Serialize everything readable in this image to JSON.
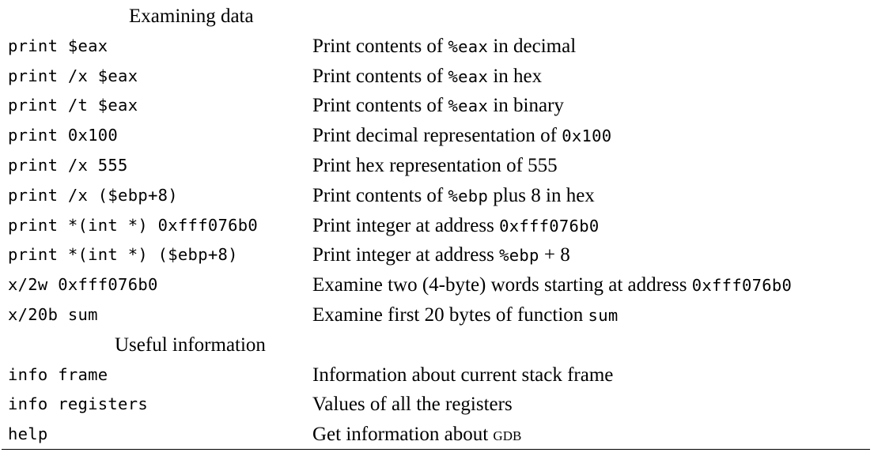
{
  "sections": [
    {
      "heading": "Examining data",
      "rows": [
        {
          "command": "print $eax",
          "desc": [
            {
              "t": "Print contents of "
            },
            {
              "t": "%eax",
              "mono": true
            },
            {
              "t": " in decimal"
            }
          ]
        },
        {
          "command": "print /x $eax",
          "desc": [
            {
              "t": "Print contents of "
            },
            {
              "t": "%eax",
              "mono": true
            },
            {
              "t": " in hex"
            }
          ]
        },
        {
          "command": "print /t $eax",
          "desc": [
            {
              "t": "Print contents of "
            },
            {
              "t": "%eax",
              "mono": true
            },
            {
              "t": " in binary"
            }
          ]
        },
        {
          "command": "print 0x100",
          "desc": [
            {
              "t": "Print decimal representation of "
            },
            {
              "t": "0x100",
              "mono": true
            }
          ]
        },
        {
          "command": "print /x 555",
          "desc": [
            {
              "t": "Print hex representation of 555"
            }
          ]
        },
        {
          "command": "print /x ($ebp+8)",
          "desc": [
            {
              "t": "Print contents of "
            },
            {
              "t": "%ebp",
              "mono": true
            },
            {
              "t": " plus 8 in hex"
            }
          ]
        },
        {
          "command": "print *(int *) 0xfff076b0",
          "desc": [
            {
              "t": "Print integer at address "
            },
            {
              "t": "0xfff076b0",
              "mono": true
            }
          ]
        },
        {
          "command": "print *(int *) ($ebp+8)",
          "desc": [
            {
              "t": "Print integer at address "
            },
            {
              "t": "%ebp",
              "mono": true
            },
            {
              "t": " + 8"
            }
          ]
        },
        {
          "command": "x/2w 0xfff076b0",
          "desc": [
            {
              "t": "Examine two (4-byte) words starting at address "
            },
            {
              "t": "0xfff076b0",
              "mono": true
            }
          ]
        },
        {
          "command": "x/20b sum",
          "desc": [
            {
              "t": "Examine first 20 bytes of function "
            },
            {
              "t": "sum",
              "mono": true
            }
          ]
        }
      ]
    },
    {
      "heading": "Useful information",
      "rows": [
        {
          "command": "info frame",
          "desc": [
            {
              "t": "Information about current stack frame"
            }
          ]
        },
        {
          "command": "info registers",
          "desc": [
            {
              "t": "Values of all the registers"
            }
          ]
        },
        {
          "command": "help",
          "desc": [
            {
              "t": "Get information about "
            },
            {
              "t": "gdb",
              "sc": true
            }
          ]
        }
      ]
    }
  ]
}
